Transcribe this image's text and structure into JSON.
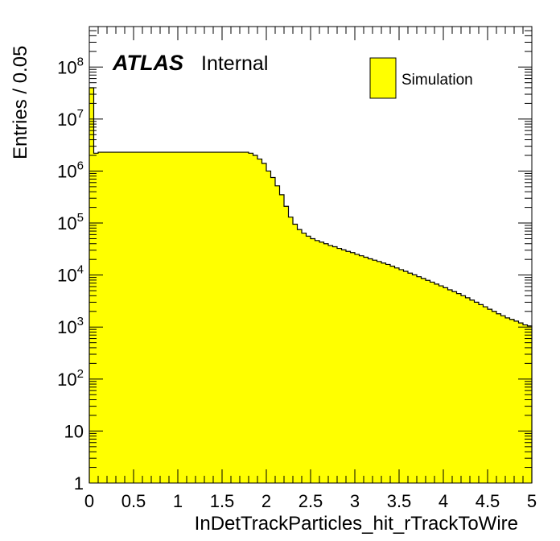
{
  "chart_data": {
    "type": "bar",
    "ylabel": "Entries / 0.05",
    "xlabel": "InDetTrackParticles_hit_rTrackToWire",
    "xlim": [
      0,
      5
    ],
    "ylim": [
      1,
      600000000
    ],
    "yscale": "log",
    "bin_width": 0.05,
    "x_ticks": [
      {
        "value": 0,
        "label": "0"
      },
      {
        "value": 0.5,
        "label": "0.5"
      },
      {
        "value": 1,
        "label": "1"
      },
      {
        "value": 1.5,
        "label": "1.5"
      },
      {
        "value": 2,
        "label": "2"
      },
      {
        "value": 2.5,
        "label": "2.5"
      },
      {
        "value": 3,
        "label": "3"
      },
      {
        "value": 3.5,
        "label": "3.5"
      },
      {
        "value": 4,
        "label": "4"
      },
      {
        "value": 4.5,
        "label": "4.5"
      },
      {
        "value": 5,
        "label": "5"
      }
    ],
    "y_ticks": [
      {
        "value": 1,
        "label": "1"
      },
      {
        "value": 10,
        "label": "10"
      },
      {
        "value": 100,
        "label": "10",
        "exp": "2"
      },
      {
        "value": 1000,
        "label": "10",
        "exp": "3"
      },
      {
        "value": 10000,
        "label": "10",
        "exp": "4"
      },
      {
        "value": 100000,
        "label": "10",
        "exp": "5"
      },
      {
        "value": 1000000,
        "label": "10",
        "exp": "6"
      },
      {
        "value": 10000000,
        "label": "10",
        "exp": "7"
      },
      {
        "value": 100000000,
        "label": "10",
        "exp": "8"
      }
    ],
    "series": [
      {
        "name": "Simulation",
        "color": "#ffff00",
        "edge_color": "#000000",
        "values": [
          40000000,
          2200000,
          2300000,
          2300000,
          2300000,
          2300000,
          2300000,
          2300000,
          2300000,
          2300000,
          2300000,
          2300000,
          2300000,
          2300000,
          2300000,
          2300000,
          2300000,
          2300000,
          2300000,
          2300000,
          2300000,
          2300000,
          2300000,
          2300000,
          2300000,
          2300000,
          2300000,
          2300000,
          2300000,
          2300000,
          2300000,
          2300000,
          2300000,
          2300000,
          2300000,
          2300000,
          2200000,
          2000000,
          1700000,
          1400000,
          1000000,
          750000,
          520000,
          350000,
          210000,
          130000,
          95000,
          75000,
          64000,
          56000,
          50000,
          46000,
          43000,
          40000,
          37000,
          35000,
          32500,
          30500,
          28500,
          27000,
          25000,
          23500,
          22000,
          20500,
          19300,
          18200,
          17000,
          16000,
          14800,
          13700,
          12700,
          11800,
          10900,
          10100,
          9300,
          8600,
          7900,
          7300,
          6700,
          6200,
          5700,
          5200,
          4800,
          4400,
          4000,
          3650,
          3300,
          3000,
          2700,
          2450,
          2200,
          2000,
          1800,
          1650,
          1500,
          1400,
          1300,
          1200,
          1100,
          1050
        ]
      }
    ],
    "legend": {
      "position": "top-right",
      "entries": [
        "Simulation"
      ]
    },
    "annotations": {
      "atlas": "ATLAS",
      "status": "Internal"
    }
  }
}
